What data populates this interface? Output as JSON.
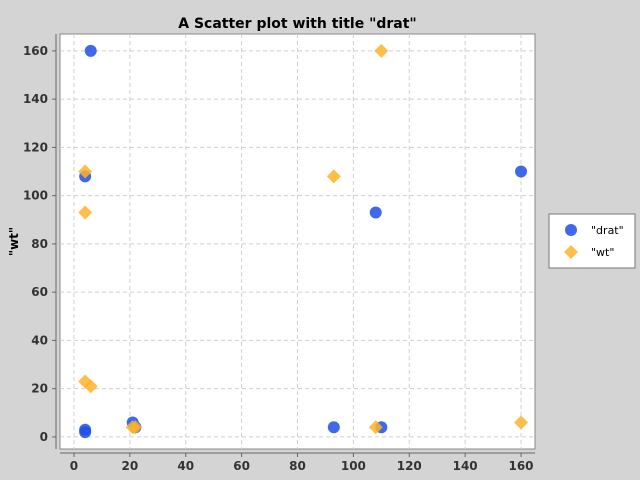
{
  "chart_data": {
    "type": "scatter",
    "title": "A Scatter plot with title \"drat\"",
    "xlabel": "",
    "ylabel": "\"wt\"",
    "xlim": [
      -5,
      165
    ],
    "ylim": [
      -5,
      167
    ],
    "x_ticks": [
      0,
      20,
      40,
      60,
      80,
      100,
      120,
      140,
      160
    ],
    "y_ticks": [
      0,
      20,
      40,
      60,
      80,
      100,
      120,
      140,
      160
    ],
    "grid": true,
    "legend_position": "right",
    "background": "#ffffff",
    "series": [
      {
        "name": "\"drat\"",
        "marker": "circle",
        "color": "#1f4fe6",
        "points": [
          {
            "x": 6,
            "y": 160
          },
          {
            "x": 4,
            "y": 108
          },
          {
            "x": 108,
            "y": 93
          },
          {
            "x": 160,
            "y": 110
          },
          {
            "x": 4,
            "y": 3
          },
          {
            "x": 4,
            "y": 2
          },
          {
            "x": 21,
            "y": 6
          },
          {
            "x": 22,
            "y": 4
          },
          {
            "x": 93,
            "y": 4
          },
          {
            "x": 110,
            "y": 4
          }
        ]
      },
      {
        "name": "\"wt\"",
        "marker": "diamond",
        "color": "#ffb32a",
        "points": [
          {
            "x": 110,
            "y": 160
          },
          {
            "x": 4,
            "y": 110
          },
          {
            "x": 93,
            "y": 108
          },
          {
            "x": 4,
            "y": 93
          },
          {
            "x": 4,
            "y": 23
          },
          {
            "x": 6,
            "y": 21
          },
          {
            "x": 21,
            "y": 4
          },
          {
            "x": 22,
            "y": 4
          },
          {
            "x": 108,
            "y": 4
          },
          {
            "x": 160,
            "y": 6
          }
        ]
      }
    ]
  }
}
